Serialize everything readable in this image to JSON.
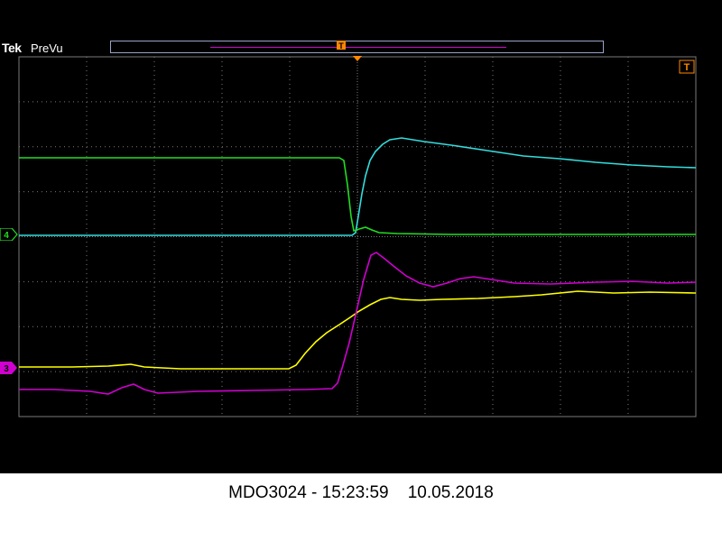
{
  "header": {
    "brand": "Tek",
    "mode": "PreVu",
    "trigger_marker_label": "T",
    "trigger_level_label": "T"
  },
  "channels": {
    "ch4": {
      "label": "4",
      "color": "#22dd22"
    },
    "ch3": {
      "label": "3",
      "color": "#d000d0"
    },
    "ch1_color": "#ffff00",
    "ch2_color": "#33dddd"
  },
  "caption": {
    "text": "MDO3024 - 15:23:59    10.05.2018"
  },
  "colors": {
    "grid": "#7a7a7a",
    "trigger": "#ff8800",
    "record_bar_border": "#9aa3c9"
  }
}
